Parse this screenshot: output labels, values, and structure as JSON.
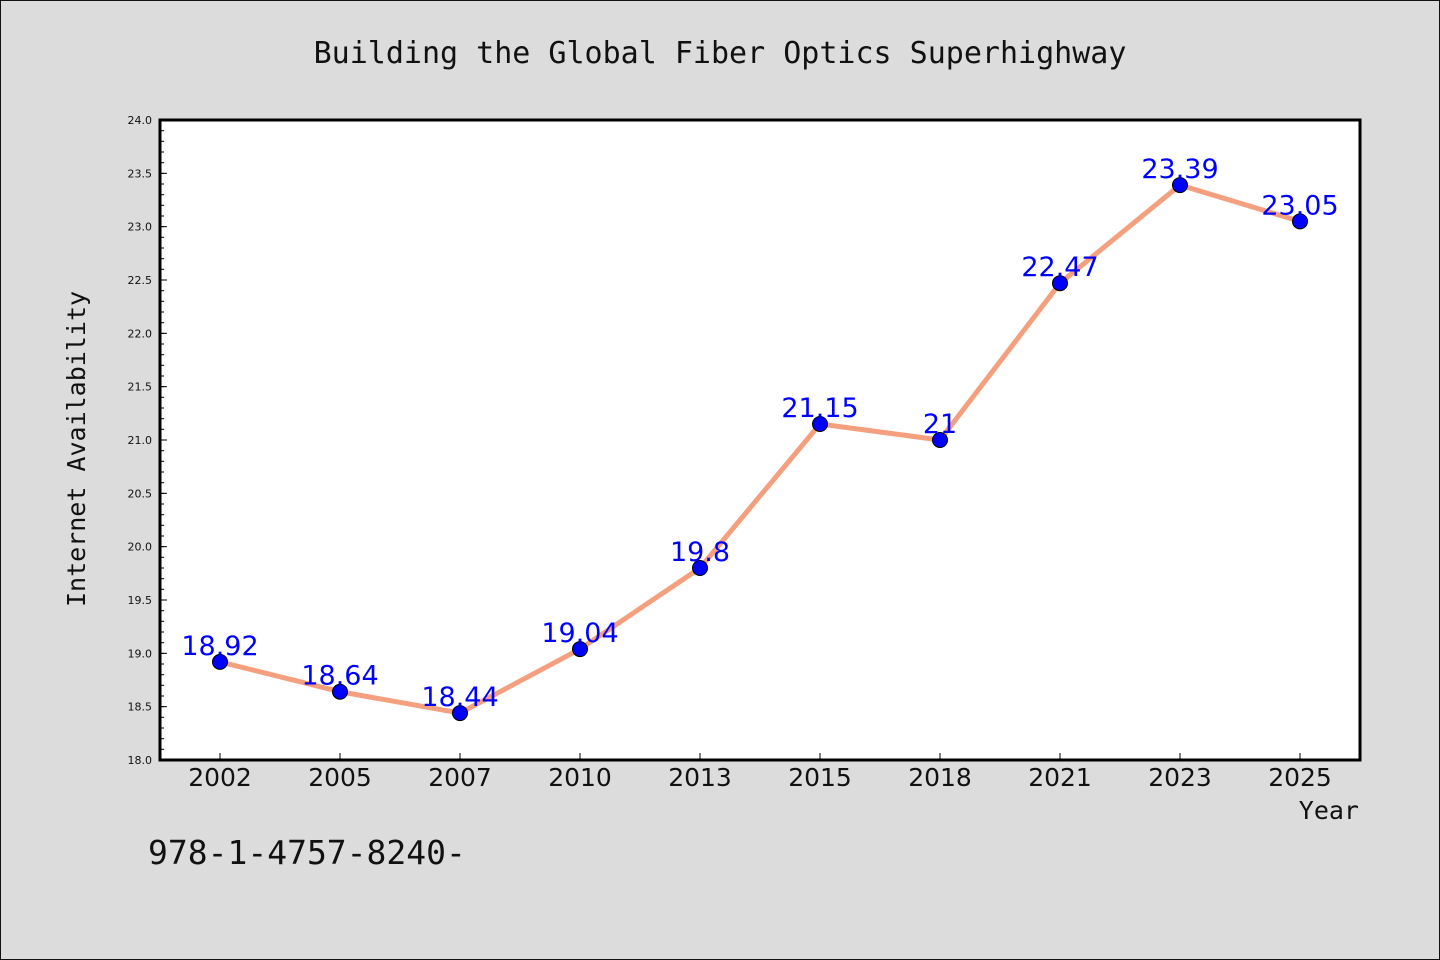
{
  "chart_data": {
    "type": "line",
    "title": "Building the Global Fiber Optics Superhighway",
    "xlabel": "Year",
    "ylabel": "Internet Availability",
    "categories": [
      "2002",
      "2005",
      "2007",
      "2010",
      "2013",
      "2015",
      "2018",
      "2021",
      "2023",
      "2025"
    ],
    "values": [
      18.92,
      18.64,
      18.44,
      19.04,
      19.8,
      21.15,
      21,
      22.47,
      23.39,
      23.05
    ],
    "data_labels": [
      "18.92",
      "18.64",
      "18.44",
      "19.04",
      "19.8",
      "21.15",
      "21",
      "22.47",
      "23.39",
      "23.05"
    ],
    "ylim": [
      18.0,
      24.0
    ],
    "y_ticks": [
      "18.0",
      "18.5",
      "19.0",
      "19.5",
      "20.0",
      "20.5",
      "21.0",
      "21.5",
      "22.0",
      "22.5",
      "23.0",
      "23.5",
      "24.0"
    ],
    "grid": false,
    "line_color": "#f4a07e",
    "marker_color": "#0000ff",
    "label_color": "#0000ff",
    "background_color": "#dcdcdc",
    "plot_background_color": "#ffffff"
  },
  "footer": {
    "isbn": "978-1-4757-8240-"
  }
}
